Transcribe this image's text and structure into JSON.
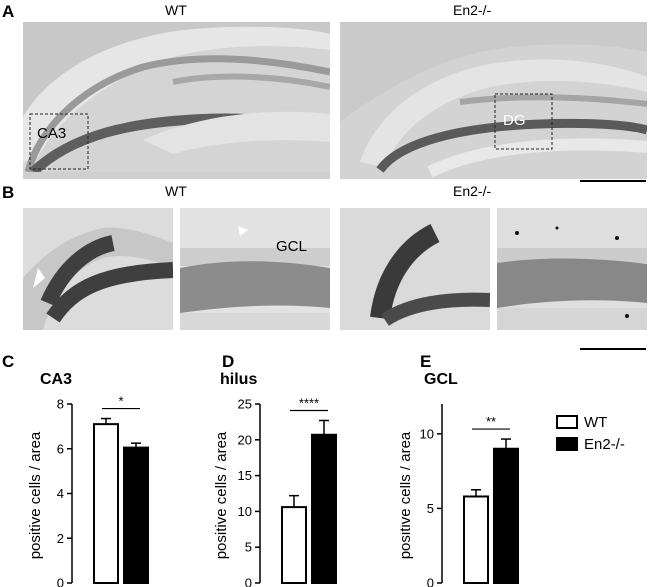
{
  "figure": {
    "panel_a": {
      "letter": "A",
      "left_title": "WT",
      "right_title": "En2-/-",
      "roi_left_label": "CA3",
      "roi_right_label": "DG"
    },
    "panel_b": {
      "letter": "B",
      "left_title": "WT",
      "right_title": "En2-/-",
      "inset_label": "GCL"
    },
    "legend": {
      "items": [
        {
          "label": "WT",
          "fill": "#ffffff"
        },
        {
          "label": "En2-/-",
          "fill": "#000000"
        }
      ]
    }
  },
  "chart_data": [
    {
      "panel": "C",
      "type": "bar",
      "title": "CA3",
      "ylabel": "positive cells / area",
      "categories": [
        "WT",
        "En2-/-"
      ],
      "values": [
        7.1,
        6.05
      ],
      "errors": [
        0.25,
        0.2
      ],
      "fills": [
        "#ffffff",
        "#000000"
      ],
      "ylim": [
        0,
        8
      ],
      "yticks": [
        0,
        2,
        4,
        6,
        8
      ],
      "significance": "*"
    },
    {
      "panel": "D",
      "type": "bar",
      "title": "hilus",
      "ylabel": "positive cells / area",
      "categories": [
        "WT",
        "En2-/-"
      ],
      "values": [
        10.6,
        20.7
      ],
      "errors": [
        1.6,
        2.0
      ],
      "fills": [
        "#ffffff",
        "#000000"
      ],
      "ylim": [
        0,
        25
      ],
      "yticks": [
        0,
        5,
        10,
        15,
        20,
        25
      ],
      "significance": "****"
    },
    {
      "panel": "E",
      "type": "bar",
      "title": "GCL",
      "ylabel": "positive cells / area",
      "categories": [
        "WT",
        "En2-/-"
      ],
      "values": [
        5.8,
        9.0
      ],
      "errors": [
        0.45,
        0.65
      ],
      "fills": [
        "#ffffff",
        "#000000"
      ],
      "ylim": [
        0,
        12
      ],
      "yticks": [
        0,
        5,
        10
      ],
      "significance": "**"
    }
  ]
}
